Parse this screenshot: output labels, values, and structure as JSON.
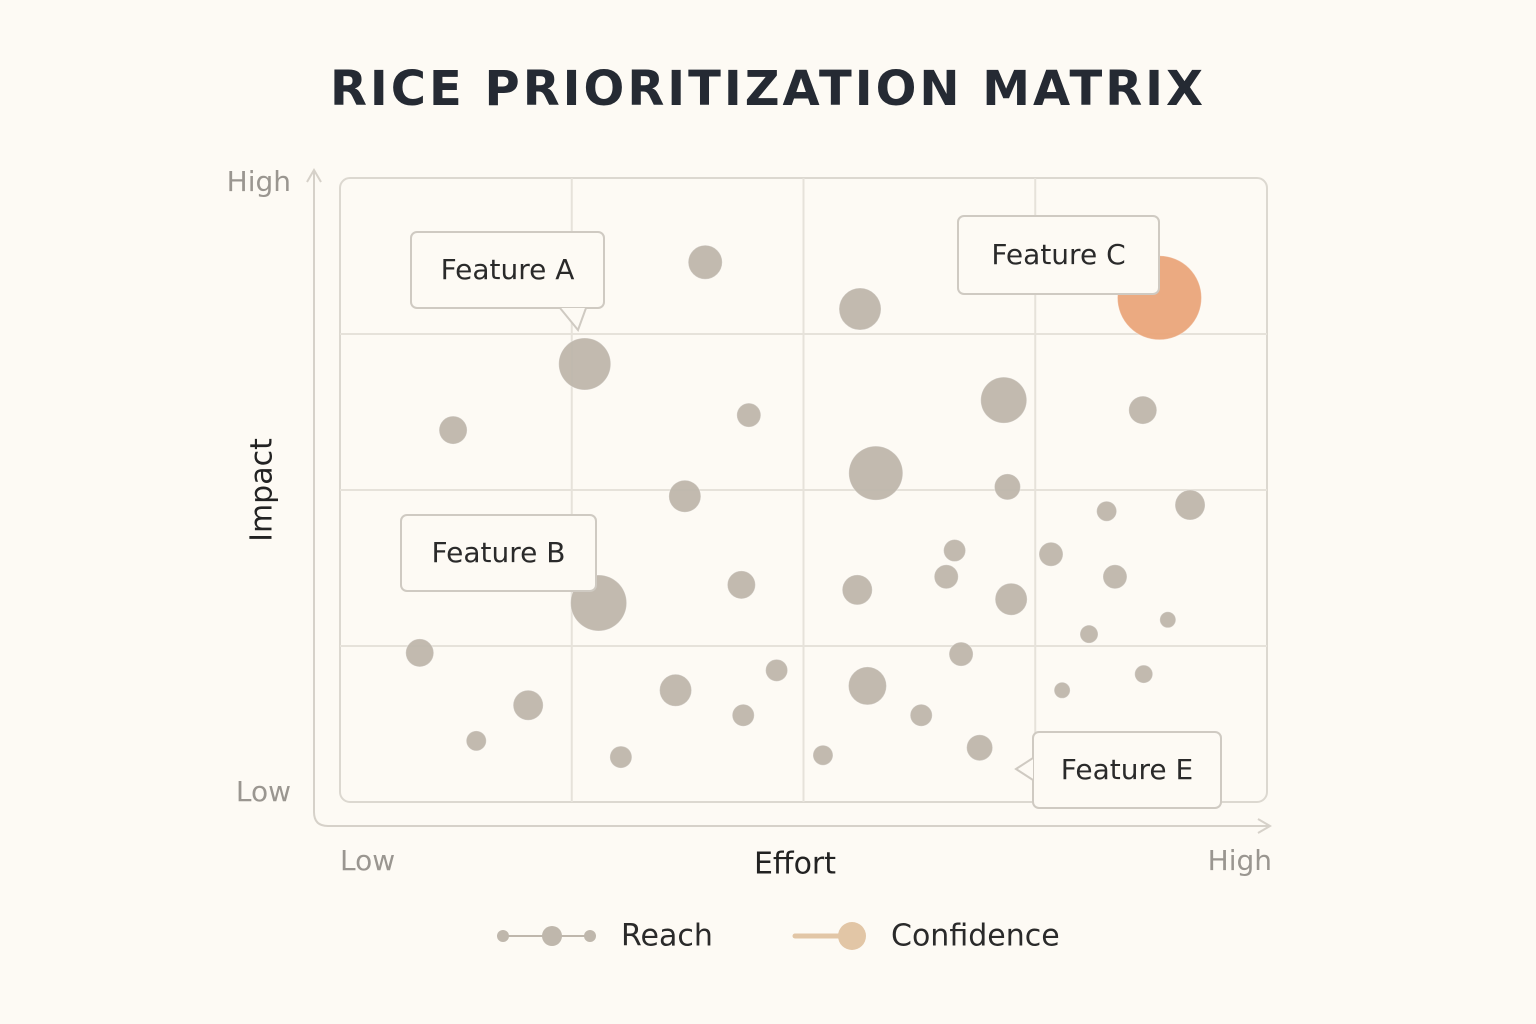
{
  "chart_data": {
    "type": "bubble",
    "title": "RICE PRIORITIZATION MATRIX",
    "x_label": "Effort",
    "y_label": "Impact",
    "xlim": [
      0,
      100
    ],
    "ylim": [
      0,
      100
    ],
    "xticks": [
      {
        "value": 0,
        "label": "Low"
      },
      {
        "value": 100,
        "label": "High"
      }
    ],
    "yticks": [
      {
        "value": 0,
        "label": "Low"
      },
      {
        "value": 100,
        "label": "High"
      }
    ],
    "grid": true,
    "series": [
      {
        "name": "Reach",
        "color": "#bfb7ac",
        "highlight": {
          "index": 36,
          "color": "#eba67b"
        },
        "x": [
          39.4,
          56.1,
          26.4,
          12.2,
          44.1,
          71.6,
          86.6,
          57.8,
          37.2,
          72.0,
          82.7,
          91.7,
          66.3,
          76.7,
          27.9,
          43.3,
          55.8,
          65.4,
          72.4,
          83.6,
          80.8,
          89.3,
          8.6,
          67.0,
          20.3,
          36.2,
          47.1,
          56.9,
          43.5,
          62.7,
          14.7,
          30.3,
          52.1,
          69.0,
          77.9,
          86.7,
          88.4
        ],
        "values": [
          86.5,
          79.0,
          70.2,
          59.6,
          62.0,
          64.4,
          62.8,
          52.7,
          49.0,
          50.5,
          46.6,
          47.6,
          40.3,
          39.7,
          31.9,
          34.8,
          34.0,
          36.1,
          32.5,
          36.1,
          26.9,
          29.2,
          23.9,
          23.7,
          15.5,
          17.9,
          21.1,
          18.6,
          13.9,
          13.9,
          9.8,
          7.2,
          7.5,
          8.7,
          17.9,
          20.5,
          80.8
        ],
        "sizes": [
          17,
          21,
          26,
          14,
          12,
          23,
          14,
          27,
          16,
          13,
          10,
          15,
          11,
          12,
          28,
          14,
          15,
          12,
          16,
          12,
          9,
          8,
          14,
          12,
          15,
          16,
          11,
          19,
          11,
          11,
          10,
          11,
          10,
          13,
          8,
          9,
          42
        ]
      },
      {
        "name": "Confidence",
        "color": "#e2c6a6",
        "x": [],
        "values": [],
        "sizes": []
      }
    ],
    "annotations": [
      "Feature A",
      "Feature B",
      "Feature C",
      "Feature E"
    ]
  }
}
